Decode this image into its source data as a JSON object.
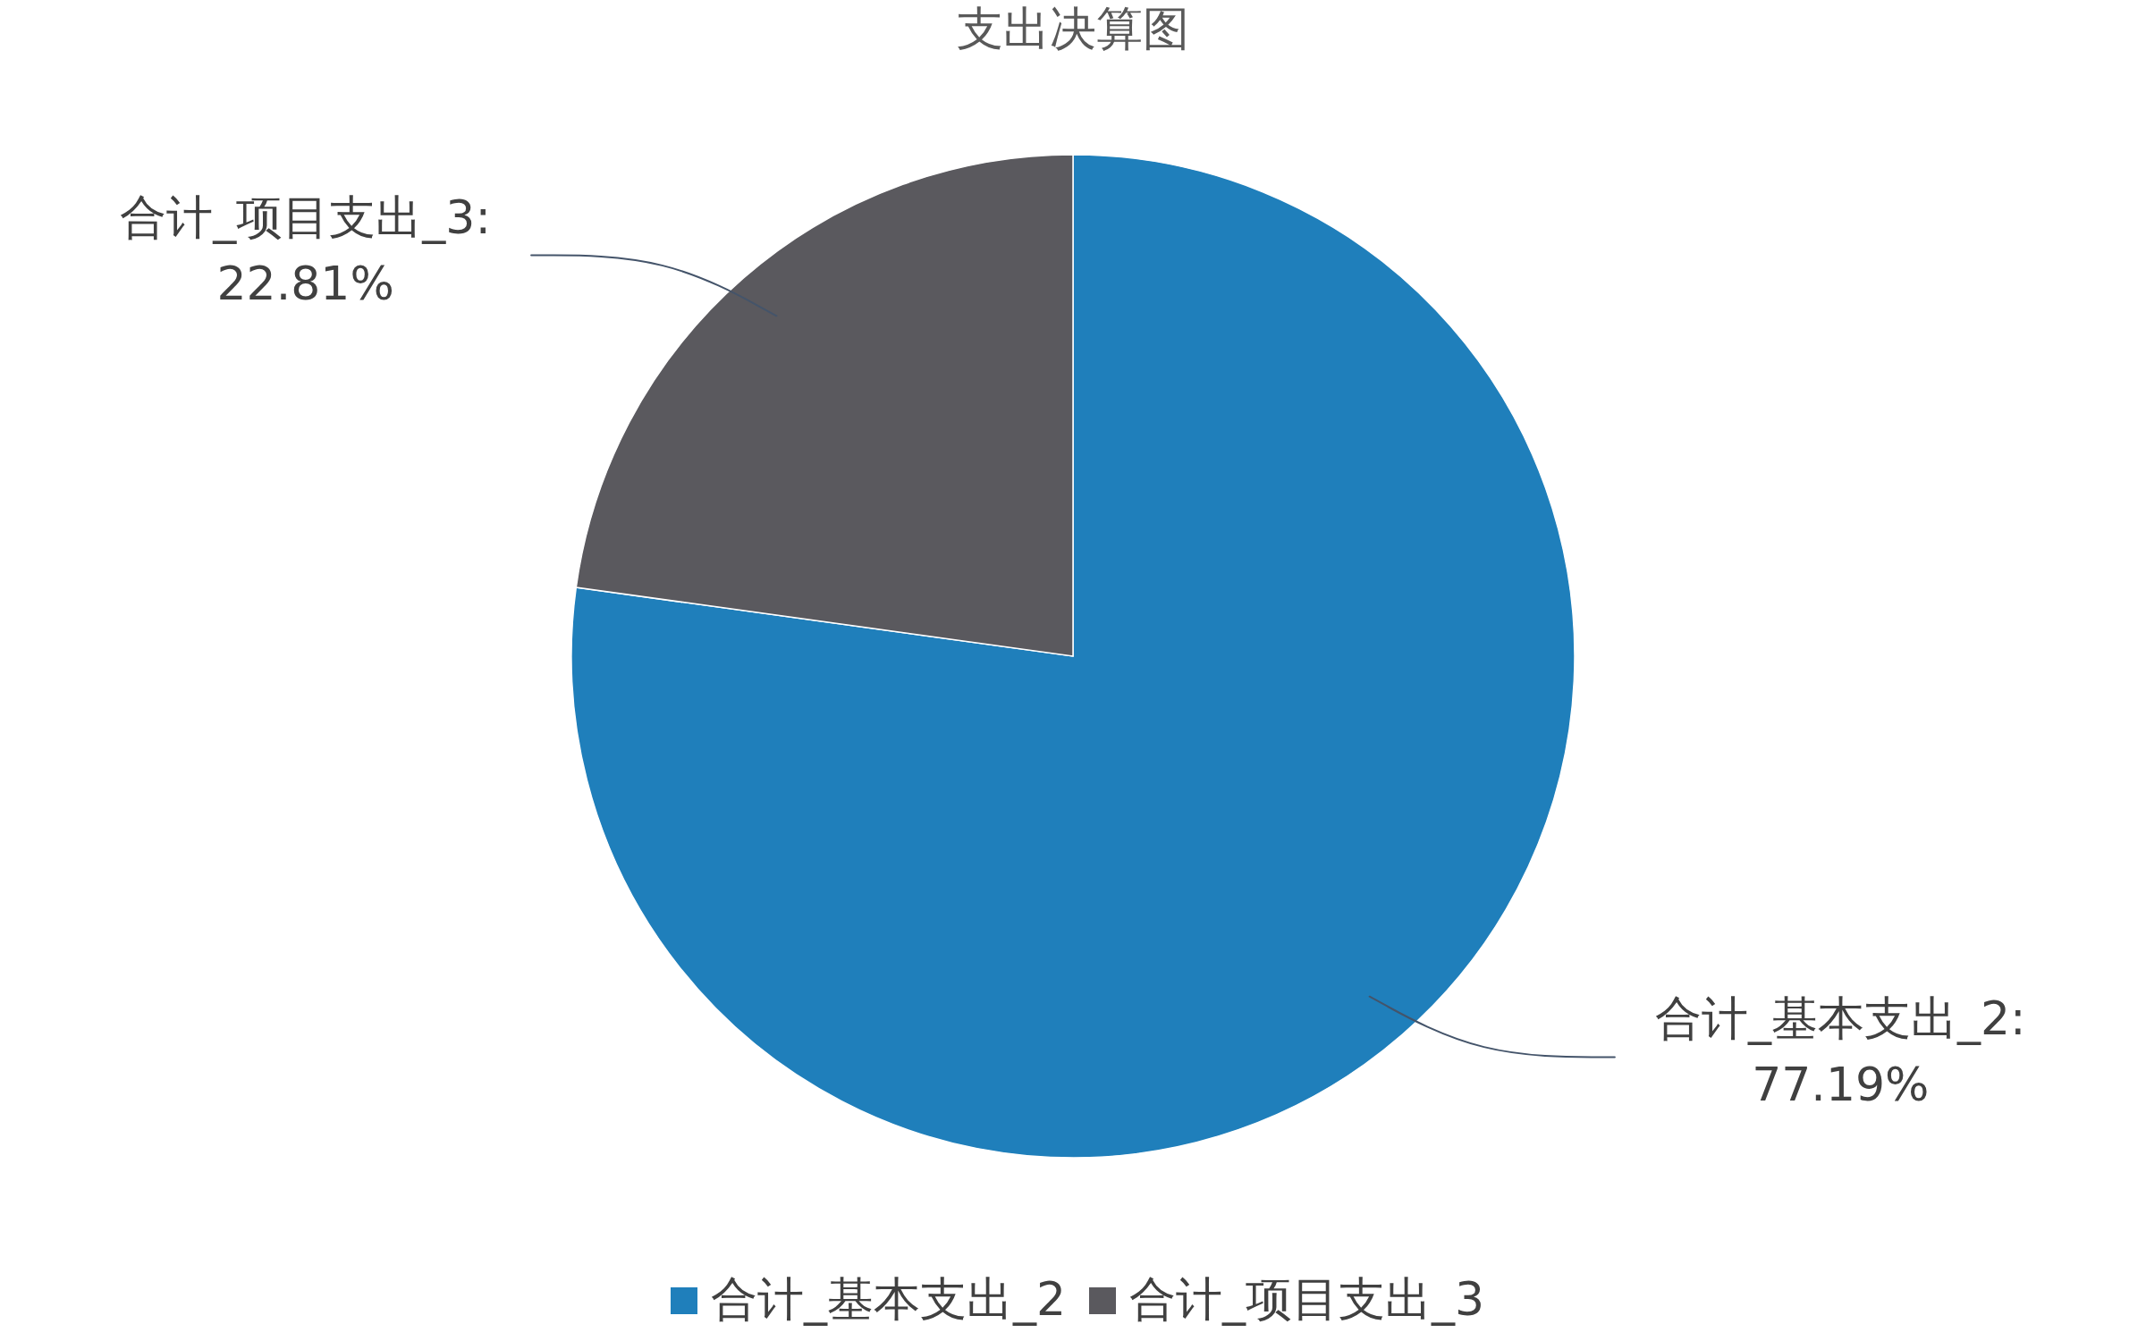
{
  "chart_data": {
    "type": "pie",
    "title": "支出决算图",
    "categories": [
      "合计_基本支出_2",
      "合计_项目支出_3"
    ],
    "values": [
      77.19,
      22.81
    ],
    "colors": [
      "#1f7fbb",
      "#5a595e"
    ],
    "value_labels": [
      "合计_基本支出_2:\n77.19%",
      "合计_项目支出_3:\n22.81%"
    ],
    "legend": "bottom"
  }
}
